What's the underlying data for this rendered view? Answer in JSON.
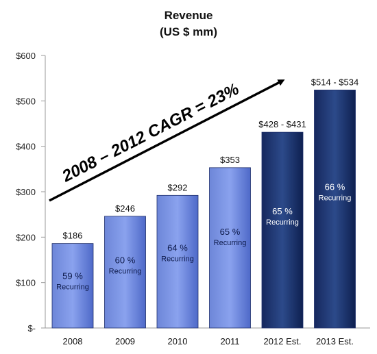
{
  "chart_data": {
    "type": "bar",
    "title": "Revenue",
    "subtitle": "(US $ mm)",
    "categories": [
      "2008",
      "2009",
      "2010",
      "2011",
      "2012 Est.",
      "2013 Est."
    ],
    "values": [
      186,
      246,
      292,
      353,
      431,
      524
    ],
    "value_labels": [
      "$186",
      "$246",
      "$292",
      "$353",
      "$428 - $431",
      "$514 - $534"
    ],
    "bar_text_pct": [
      "59 %",
      "60 %",
      "64 %",
      "65 %",
      "65 %",
      "66 %"
    ],
    "bar_text_sub": [
      "Recurring",
      "Recurring",
      "Recurring",
      "Recurring",
      "Recurring",
      "Recurring"
    ],
    "estimate": [
      false,
      false,
      false,
      false,
      true,
      true
    ],
    "ylim": [
      0,
      600
    ],
    "yticks": [
      0,
      100,
      200,
      300,
      400,
      500,
      600
    ],
    "ytick_labels": [
      "$-",
      "$100",
      "$200",
      "$300",
      "$400",
      "$500",
      "$600"
    ],
    "xlabel": "",
    "ylabel": "",
    "grid": false,
    "annotation": "2008 – 2012  CAGR = 23%",
    "colors": {
      "actual_light": "#7b94e4",
      "actual_dark": "#4e69c8",
      "estimate_light": "#2c4a8a",
      "estimate_dark": "#0e2050",
      "outline": "#1f2f6b"
    }
  }
}
